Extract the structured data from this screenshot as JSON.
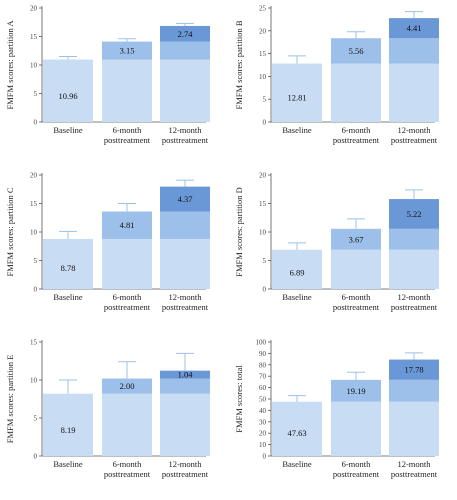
{
  "colors": {
    "baseline": "#c8dcf4",
    "increase_6m": "#9dc0ea",
    "increase_12m": "#6a98d6",
    "axis": "#555555",
    "error_bar": "#9dc0ea"
  },
  "chart_data": [
    {
      "type": "bar",
      "stacked": true,
      "ylabel": "FMFM scores: partition A",
      "ylim": [
        0,
        20
      ],
      "yticks": [
        0,
        5,
        10,
        15,
        20
      ],
      "categories": [
        "Baseline",
        "6-month posttreatment",
        "12-month posttreatment"
      ],
      "category_lines": [
        [
          "Baseline"
        ],
        [
          "6-month",
          "posttreatment"
        ],
        [
          "12-month",
          "posttreatment"
        ]
      ],
      "baseline_value": 10.96,
      "increase_6m": 3.15,
      "increase_12m": 2.74,
      "segment_labels": [
        "10.96",
        "3.15",
        "2.74"
      ],
      "totals": [
        10.96,
        14.11,
        16.85
      ],
      "error_upper": [
        11.5,
        14.6,
        17.3
      ]
    },
    {
      "type": "bar",
      "stacked": true,
      "ylabel": "FMFM scores: partition B",
      "ylim": [
        0,
        25
      ],
      "yticks": [
        0,
        5,
        10,
        15,
        20,
        25
      ],
      "categories": [
        "Baseline",
        "6-month posttreatment",
        "12-month posttreatment"
      ],
      "category_lines": [
        [
          "Baseline"
        ],
        [
          "6-month",
          "posttreatment"
        ],
        [
          "12-month",
          "posttreatment"
        ]
      ],
      "baseline_value": 12.81,
      "increase_6m": 5.56,
      "increase_12m": 4.41,
      "segment_labels": [
        "12.81",
        "5.56",
        "4.41"
      ],
      "totals": [
        12.81,
        18.37,
        22.78
      ],
      "error_upper": [
        14.5,
        19.8,
        24.2
      ]
    },
    {
      "type": "bar",
      "stacked": true,
      "ylabel": "FMFM scores: partition C",
      "ylim": [
        0,
        20
      ],
      "yticks": [
        0,
        5,
        10,
        15,
        20
      ],
      "categories": [
        "Baseline",
        "6-month posttreatment",
        "12-month posttreatment"
      ],
      "category_lines": [
        [
          "Baseline"
        ],
        [
          "6-month",
          "posttreatment"
        ],
        [
          "12-month",
          "posttreatment"
        ]
      ],
      "baseline_value": 8.78,
      "increase_6m": 4.81,
      "increase_12m": 4.37,
      "segment_labels": [
        "8.78",
        "4.81",
        "4.37"
      ],
      "totals": [
        8.78,
        13.59,
        17.96
      ],
      "error_upper": [
        10.1,
        15.0,
        19.1
      ]
    },
    {
      "type": "bar",
      "stacked": true,
      "ylabel": "FMFM scores: partition D",
      "ylim": [
        0,
        20
      ],
      "yticks": [
        0,
        5,
        10,
        15,
        20
      ],
      "categories": [
        "Baseline",
        "6-month posttreatment",
        "12-month posttreatment"
      ],
      "category_lines": [
        [
          "Baseline"
        ],
        [
          "6-month",
          "posttreatment"
        ],
        [
          "12-month",
          "posttreatment"
        ]
      ],
      "baseline_value": 6.89,
      "increase_6m": 3.67,
      "increase_12m": 5.22,
      "segment_labels": [
        "6.89",
        "3.67",
        "5.22"
      ],
      "totals": [
        6.89,
        10.56,
        15.78
      ],
      "error_upper": [
        8.1,
        12.3,
        17.4
      ]
    },
    {
      "type": "bar",
      "stacked": true,
      "ylabel": "FMFM scores: partition E",
      "ylim": [
        0,
        15
      ],
      "yticks": [
        0,
        5,
        10,
        15
      ],
      "categories": [
        "Baseline",
        "6-month posttreatment",
        "12-month posttreatment"
      ],
      "category_lines": [
        [
          "Baseline"
        ],
        [
          "6-month",
          "posttreatment"
        ],
        [
          "12-month",
          "posttreatment"
        ]
      ],
      "baseline_value": 8.19,
      "increase_6m": 2.0,
      "increase_12m": 1.04,
      "segment_labels": [
        "8.19",
        "2.00",
        "1.04"
      ],
      "totals": [
        8.19,
        10.19,
        11.23
      ],
      "error_upper": [
        10.0,
        12.4,
        13.5
      ]
    },
    {
      "type": "bar",
      "stacked": true,
      "ylabel": "FMFM scores: total",
      "ylim": [
        0,
        100
      ],
      "yticks": [
        0,
        10,
        20,
        30,
        40,
        50,
        60,
        70,
        80,
        90,
        100
      ],
      "categories": [
        "Baseline",
        "6-month posttreatment",
        "12-month posttreatment"
      ],
      "category_lines": [
        [
          "Baseline"
        ],
        [
          "6-month",
          "posttreatment"
        ],
        [
          "12-month",
          "posttreatment"
        ]
      ],
      "baseline_value": 47.63,
      "increase_6m": 19.19,
      "increase_12m": 17.78,
      "segment_labels": [
        "47.63",
        "19.19",
        "17.78"
      ],
      "totals": [
        47.63,
        66.82,
        84.6
      ],
      "error_upper": [
        53.0,
        73.5,
        90.5
      ]
    }
  ]
}
